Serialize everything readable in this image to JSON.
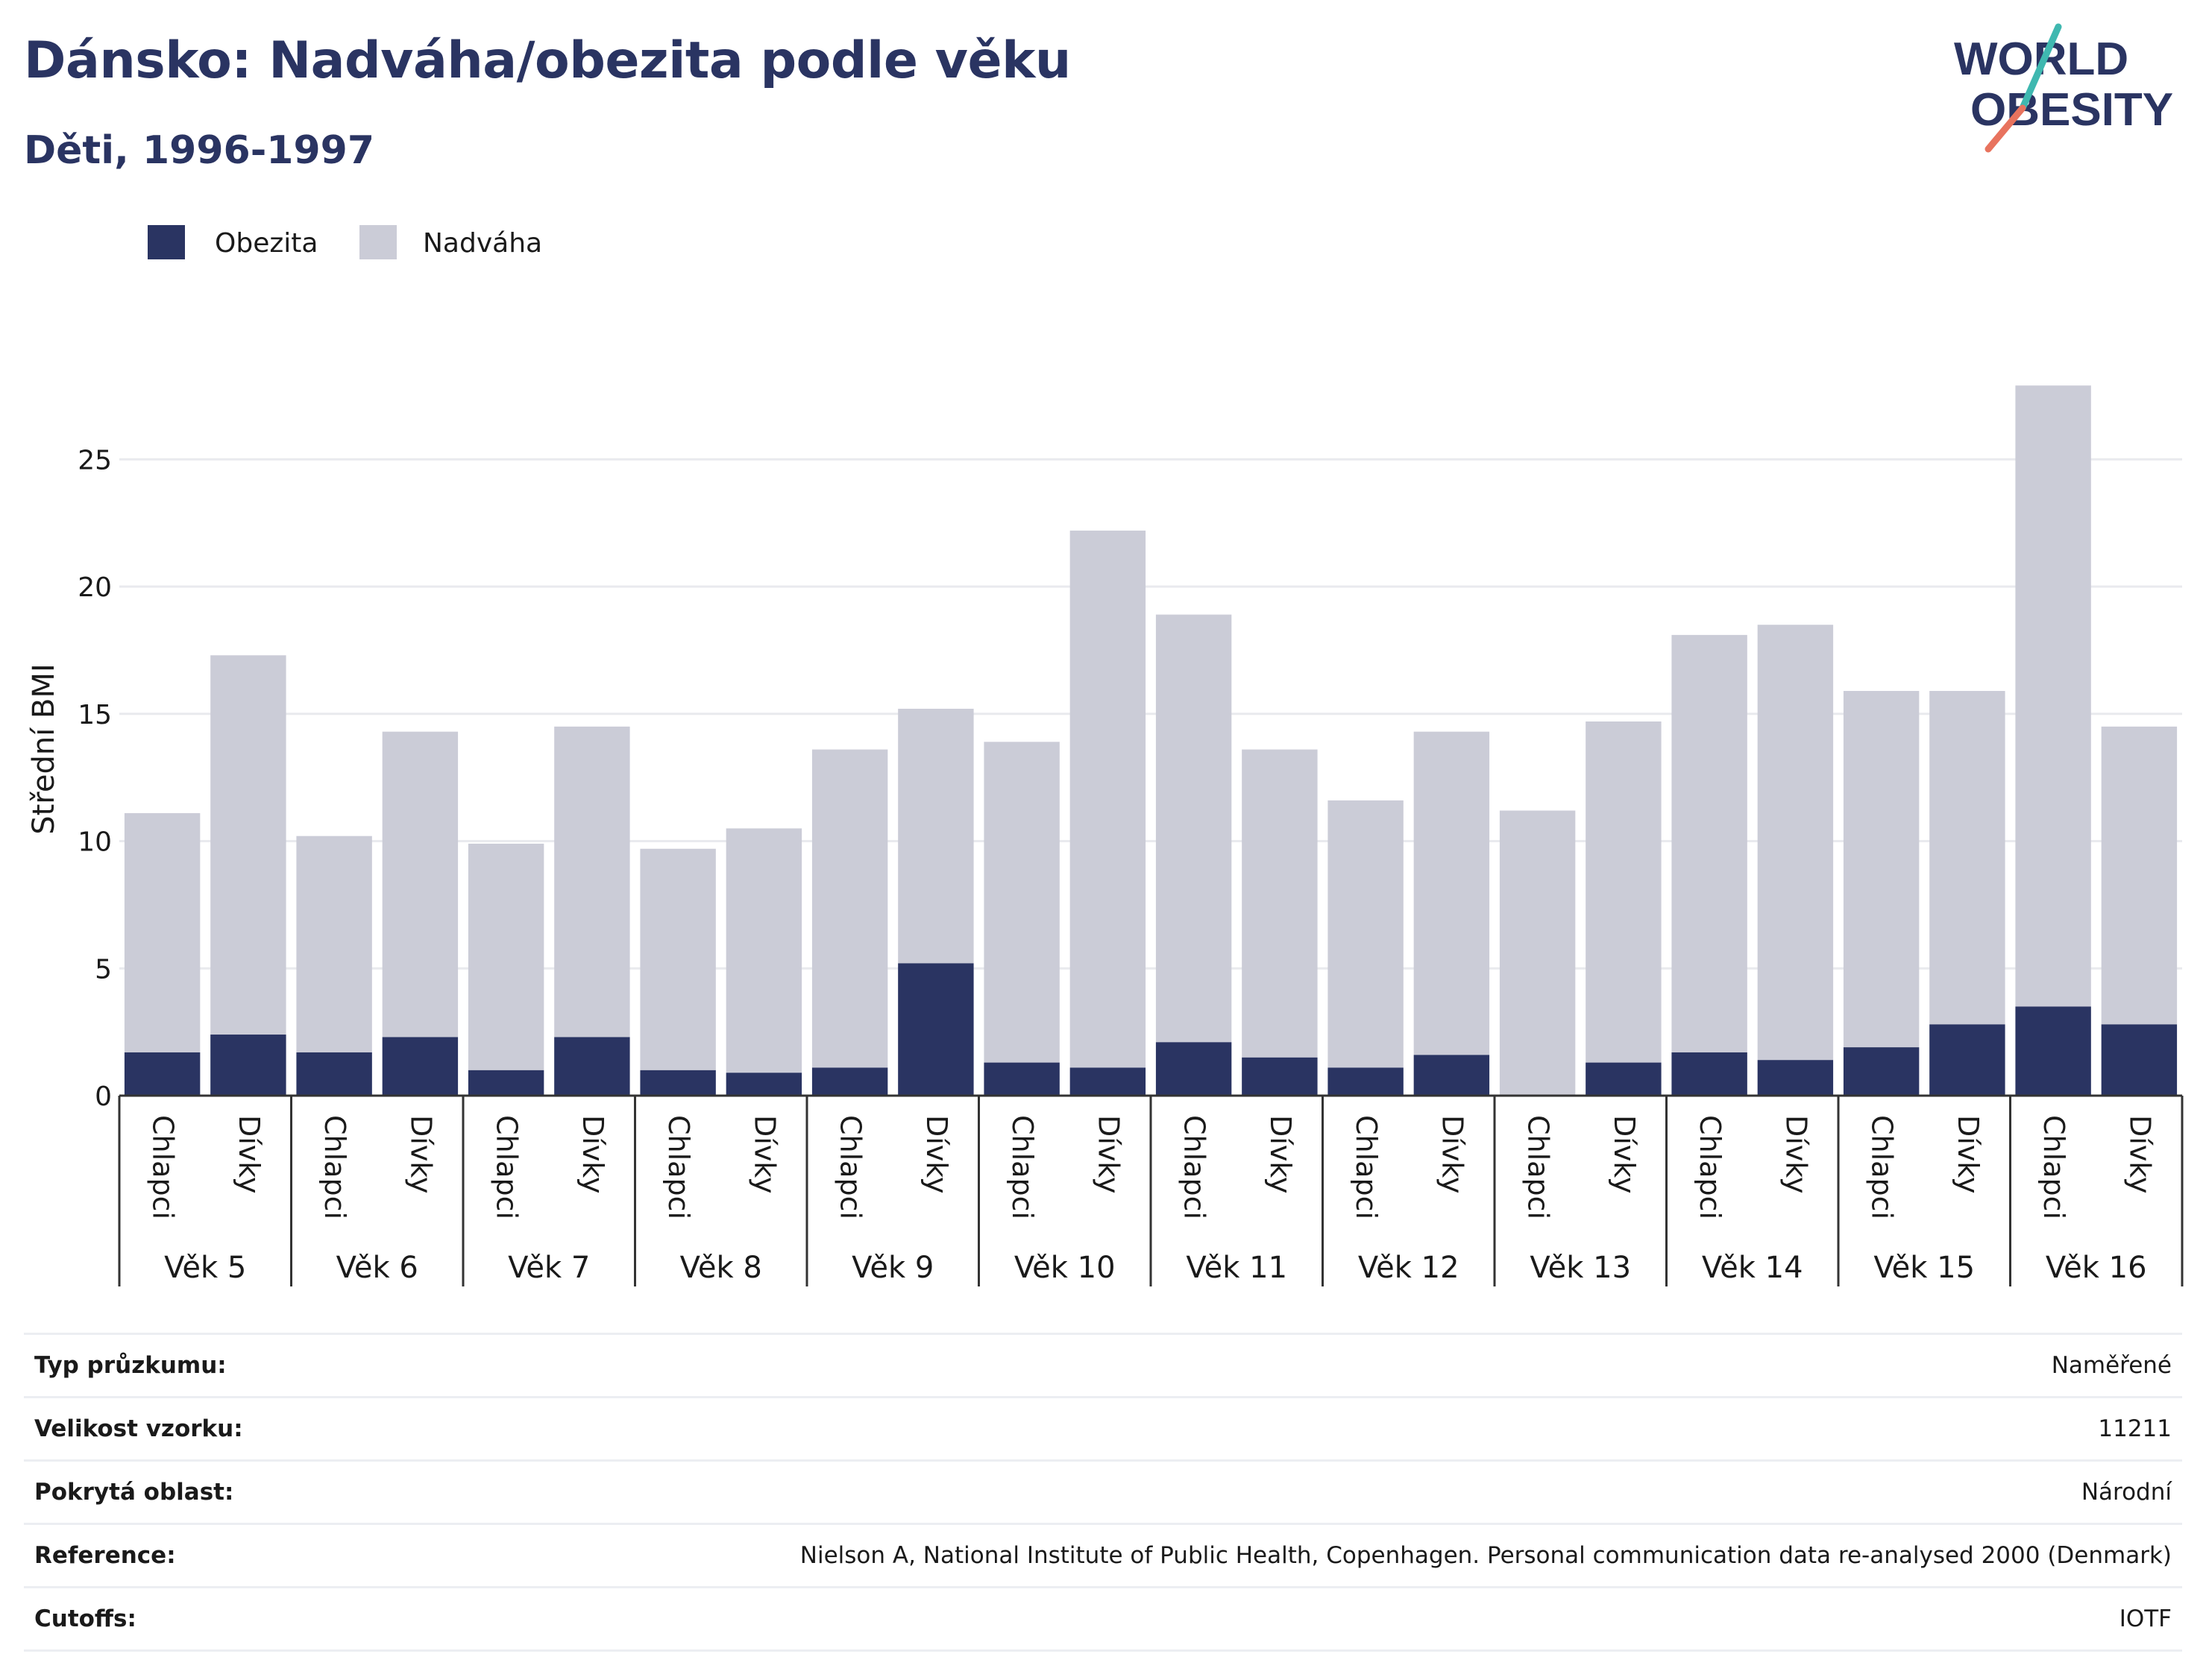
{
  "header": {
    "title": "Dánsko: Nadváha/obezita podle věku",
    "subtitle": "Děti, 1996-1997"
  },
  "logo": {
    "line1": "WORLD",
    "line2": "OBESITY",
    "name": "world-obesity-logo"
  },
  "colors": {
    "obesity": "#2a3462",
    "overweight": "#cbccd7",
    "grid": "#e9eaee",
    "axis": "#333333",
    "accent_teal": "#3fb8b0",
    "accent_coral": "#e8735e"
  },
  "chart_data": {
    "type": "bar",
    "stacked": true,
    "ylabel": "Střední BMI",
    "ylim": [
      0,
      28
    ],
    "yticks": [
      0,
      5,
      10,
      15,
      20,
      25
    ],
    "grid": true,
    "legend": {
      "position": "top-left",
      "entries": [
        "Obezita",
        "Nadváha"
      ]
    },
    "groups": [
      "Věk 5",
      "Věk 6",
      "Věk 7",
      "Věk 8",
      "Věk 9",
      "Věk 10",
      "Věk 11",
      "Věk 12",
      "Věk 13",
      "Věk 14",
      "Věk 15",
      "Věk 16"
    ],
    "subcategories": [
      "Chlapci",
      "Dívky"
    ],
    "series": [
      {
        "name": "Obezita",
        "values": [
          1.7,
          2.4,
          1.7,
          2.3,
          1.0,
          2.3,
          1.0,
          0.9,
          1.1,
          5.2,
          1.3,
          1.1,
          2.1,
          1.5,
          1.1,
          1.6,
          0.0,
          1.3,
          1.7,
          1.4,
          1.9,
          2.8,
          3.5,
          2.8
        ]
      },
      {
        "name": "Nadváha",
        "values": [
          9.4,
          14.9,
          8.5,
          12.0,
          8.9,
          12.2,
          8.7,
          9.6,
          12.5,
          10.0,
          12.6,
          21.1,
          16.8,
          12.1,
          10.5,
          12.7,
          11.2,
          13.4,
          16.4,
          17.1,
          14.0,
          13.1,
          24.4,
          11.7
        ]
      }
    ]
  },
  "info": [
    {
      "label": "Typ průzkumu:",
      "value": "Naměřené"
    },
    {
      "label": "Velikost vzorku:",
      "value": "11211"
    },
    {
      "label": "Pokrytá oblast:",
      "value": "Národní"
    },
    {
      "label": "Reference:",
      "value": "Nielson A, National Institute of Public Health, Copenhagen. Personal communication data re-analysed 2000 (Denmark)"
    },
    {
      "label": "Cutoffs:",
      "value": "IOTF"
    }
  ]
}
